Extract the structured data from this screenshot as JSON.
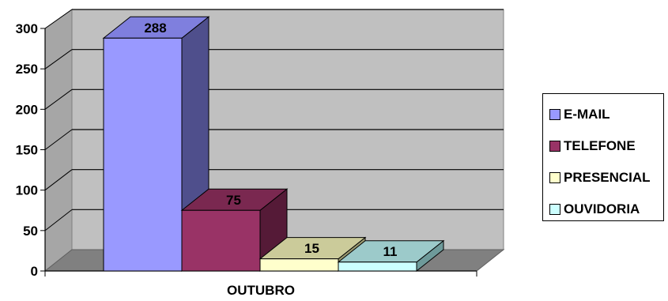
{
  "chart_data": {
    "type": "bar",
    "categories": [
      "OUTUBRO"
    ],
    "series": [
      {
        "name": "E-MAIL",
        "values": [
          288
        ],
        "color": "#9999ff",
        "side": "#4f4f8c",
        "top": "#7f7fde"
      },
      {
        "name": "TELEFONE",
        "values": [
          75
        ],
        "color": "#993366",
        "side": "#551a37",
        "top": "#7a2850"
      },
      {
        "name": "PRESENCIAL",
        "values": [
          15
        ],
        "color": "#ffffcc",
        "side": "#9a9a70",
        "top": "#cbcb9a"
      },
      {
        "name": "OUVIDORIA",
        "values": [
          11
        ],
        "color": "#ccffff",
        "side": "#6e9a9a",
        "top": "#9ccaca"
      }
    ],
    "yticks": [
      0,
      50,
      100,
      150,
      200,
      250,
      300
    ],
    "ylim": [
      0,
      300
    ],
    "grid": true,
    "legend": "right",
    "title": "",
    "xlabel": "",
    "ylabel": ""
  }
}
